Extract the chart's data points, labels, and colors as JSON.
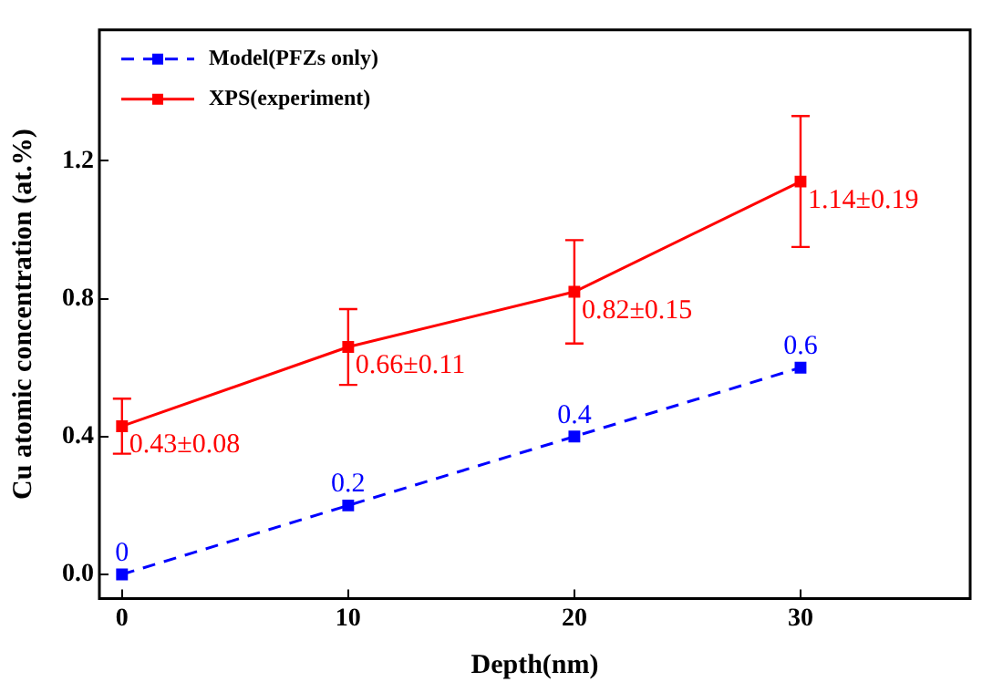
{
  "chart_data": {
    "type": "line",
    "xlabel": "Depth(nm)",
    "ylabel": "Cu atomic concentration (at.%)",
    "x": [
      0,
      10,
      20,
      30
    ],
    "xlim": [
      -1,
      37.5
    ],
    "xticks": [
      0,
      10,
      20,
      30
    ],
    "ylim": [
      -0.07,
      1.58
    ],
    "yticks": [
      {
        "value": 0,
        "label": "0.0"
      },
      {
        "value": 0.4,
        "label": "0.4"
      },
      {
        "value": 0.8,
        "label": "0.8"
      },
      {
        "value": 1.2,
        "label": "1.2"
      }
    ],
    "grid": false,
    "legend": "top left",
    "marker": "square",
    "series": [
      {
        "name": "Model(PFZs only)",
        "color": "#0000ff",
        "line_style": "dashed",
        "values": [
          0,
          0.2,
          0.4,
          0.6
        ],
        "value_labels": [
          "0",
          "0.2",
          "0.4",
          "0.6"
        ]
      },
      {
        "name": "XPS(experiment)",
        "color": "#ff0000",
        "line_style": "solid",
        "values": [
          0.43,
          0.66,
          0.82,
          1.14
        ],
        "errors": [
          0.08,
          0.11,
          0.15,
          0.19
        ],
        "value_labels": [
          "0.43±0.08",
          "0.66±0.11",
          "0.82±0.15",
          "1.14±0.19"
        ]
      }
    ]
  }
}
